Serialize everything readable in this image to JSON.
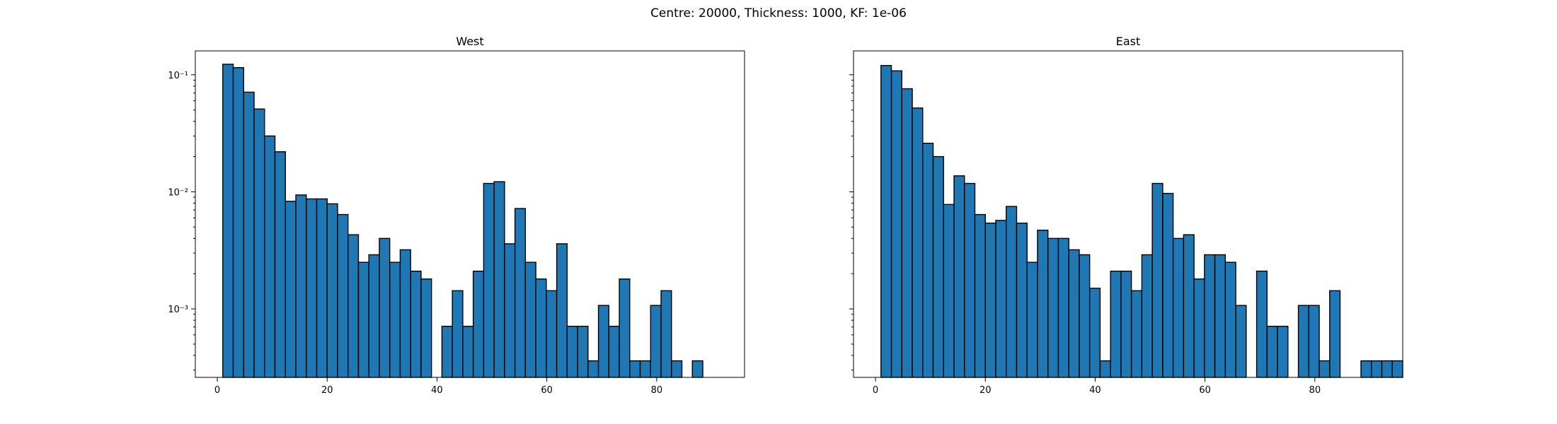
{
  "figure": {
    "suptitle": "Centre: 20000, Thickness: 1000, KF: 1e-06"
  },
  "chart_data": [
    {
      "type": "bar",
      "title": "West",
      "xlabel": "",
      "ylabel": "",
      "yscale": "log",
      "xlim": [
        -4,
        96
      ],
      "ylim": [
        0.00026,
        0.16
      ],
      "xticks": [
        0,
        20,
        40,
        60,
        80
      ],
      "yticks": [
        0.001,
        0.01,
        0.1
      ],
      "ytick_labels": [
        "10⁻³",
        "10⁻²",
        "10⁻¹"
      ],
      "bin_width": 1.9,
      "bin_start": 1,
      "values": [
        0.123,
        0.115,
        0.071,
        0.051,
        0.03,
        0.022,
        0.0083,
        0.0094,
        0.0087,
        0.0087,
        0.0079,
        0.0064,
        0.0043,
        0.0025,
        0.0029,
        0.004,
        0.0025,
        0.0032,
        0.0021,
        0.0018,
        0,
        0.00071,
        0.00143,
        0.00071,
        0.0021,
        0.0118,
        0.0122,
        0.0036,
        0.0072,
        0.0025,
        0.0018,
        0.00143,
        0.0036,
        0.00071,
        0.00071,
        0.00036,
        0.00107,
        0.00071,
        0.0018,
        0.00036,
        0.00036,
        0.00107,
        0.00143,
        0.00036,
        0,
        0.00036
      ]
    },
    {
      "type": "bar",
      "title": "East",
      "xlabel": "",
      "ylabel": "",
      "yscale": "log",
      "xlim": [
        -4,
        96
      ],
      "ylim": [
        0.00026,
        0.16
      ],
      "xticks": [
        0,
        20,
        40,
        60,
        80
      ],
      "yticks": [
        0.001,
        0.01,
        0.1
      ],
      "ytick_labels": [
        "",
        "",
        ""
      ],
      "bin_width": 1.9,
      "bin_start": 1,
      "values": [
        0.12,
        0.108,
        0.076,
        0.052,
        0.026,
        0.02,
        0.0078,
        0.0137,
        0.0118,
        0.0064,
        0.0054,
        0.0057,
        0.0075,
        0.0054,
        0.0025,
        0.0047,
        0.004,
        0.004,
        0.0032,
        0.0029,
        0.0015,
        0.00036,
        0.0021,
        0.0021,
        0.00143,
        0.0029,
        0.0118,
        0.0097,
        0.004,
        0.0043,
        0.0018,
        0.0029,
        0.0029,
        0.0025,
        0.00107,
        0,
        0.0021,
        0.00071,
        0.00071,
        0,
        0.00107,
        0.00107,
        0.00036,
        0.00143,
        0,
        0,
        0.00036,
        0.00036,
        0.00036,
        0.00036
      ]
    }
  ]
}
